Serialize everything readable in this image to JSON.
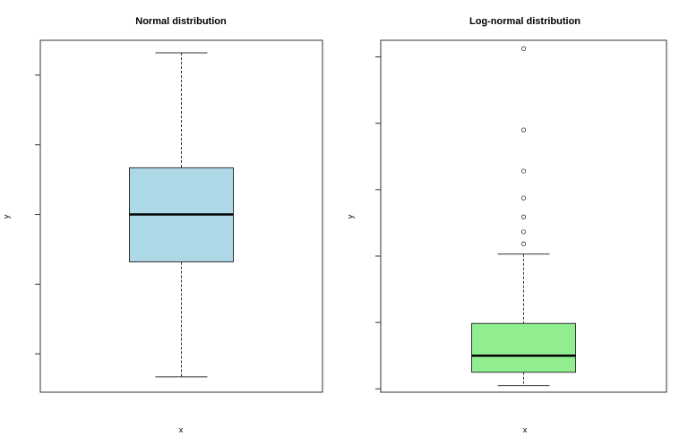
{
  "chart_data": [
    {
      "type": "boxplot",
      "title": "Normal distribution",
      "xlabel": "x",
      "ylabel": "y",
      "ylim": [
        -2.55,
        2.5
      ],
      "yticks": [
        -2,
        -1,
        0,
        1,
        2
      ],
      "fill": "#add8e6",
      "stats": {
        "min": -2.33,
        "q1": -0.68,
        "median": 0.0,
        "q3": 0.67,
        "max": 2.32
      },
      "outliers": []
    },
    {
      "type": "boxplot",
      "title": "Log-normal distribution",
      "xlabel": "x",
      "ylabel": "y",
      "ylim": [
        -0.1,
        10.5
      ],
      "yticks": [
        0,
        2,
        4,
        6,
        8,
        10
      ],
      "fill": "#90ee90",
      "stats": {
        "min": 0.1,
        "q1": 0.5,
        "median": 1.0,
        "q3": 1.97,
        "max": 4.06
      },
      "outliers": [
        4.37,
        4.73,
        5.18,
        5.75,
        6.56,
        7.8,
        10.25
      ]
    }
  ]
}
